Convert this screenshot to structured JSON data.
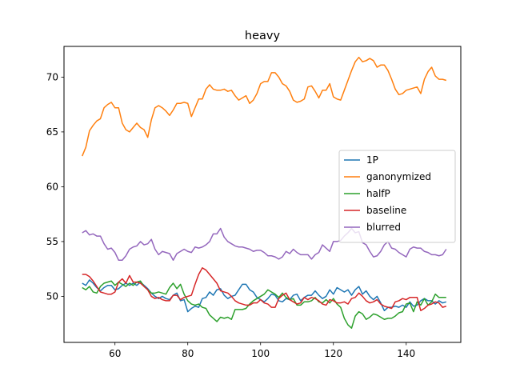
{
  "chart_data": {
    "type": "line",
    "title": "heavy",
    "xlabel": "",
    "ylabel": "",
    "xlim": [
      46,
      155
    ],
    "ylim": [
      45.8,
      72.8
    ],
    "xticks": [
      60,
      80,
      100,
      120,
      140
    ],
    "yticks": [
      50,
      55,
      60,
      65,
      70
    ],
    "legend_position": "center-right",
    "grid": false,
    "series": [
      {
        "name": "1P",
        "color": "#1f77b4",
        "x_start": 51,
        "x_step": 1,
        "values": [
          51.2,
          51.0,
          51.5,
          51.2,
          50.8,
          50.5,
          50.8,
          51.0,
          51.0,
          50.6,
          50.7,
          51.0,
          51.2,
          51.0,
          51.2,
          51.0,
          51.3,
          51.0,
          50.7,
          50.3,
          50.0,
          49.8,
          50.0,
          49.8,
          49.7,
          50.1,
          50.3,
          49.6,
          49.7,
          48.6,
          48.9,
          49.1,
          49.0,
          49.8,
          49.9,
          50.4,
          50.1,
          50.6,
          50.7,
          50.1,
          49.8,
          50.0,
          50.1,
          50.6,
          51.1,
          51.1,
          50.6,
          50.4,
          49.9,
          49.7,
          49.5,
          49.8,
          50.2,
          50.1,
          49.6,
          49.5,
          49.8,
          49.7,
          50.1,
          50.2,
          49.6,
          49.9,
          50.1,
          50.1,
          50.5,
          50.1,
          49.8,
          50.0,
          50.6,
          50.2,
          50.8,
          50.6,
          50.4,
          50.6,
          50.1,
          50.6,
          50.9,
          50.2,
          50.5,
          50.0,
          49.7,
          50.0,
          49.4,
          48.7,
          49.0,
          49.0,
          49.1,
          49.0,
          49.2,
          49.0,
          49.5,
          49.1,
          49.2,
          49.6,
          49.8,
          49.6,
          49.6,
          49.3,
          49.6,
          49.4,
          49.5
        ]
      },
      {
        "name": "ganonymized",
        "color": "#ff7f0e",
        "x_start": 51,
        "x_step": 1,
        "values": [
          62.8,
          63.6,
          65.1,
          65.6,
          66.0,
          66.2,
          67.2,
          67.5,
          67.7,
          67.2,
          67.2,
          65.8,
          65.2,
          65.0,
          65.4,
          65.8,
          65.4,
          65.2,
          64.5,
          66.1,
          67.2,
          67.4,
          67.2,
          66.9,
          66.5,
          67.0,
          67.6,
          67.6,
          67.7,
          67.6,
          66.4,
          67.2,
          68.0,
          68.0,
          68.9,
          69.3,
          68.9,
          68.8,
          68.8,
          68.9,
          68.7,
          68.8,
          68.3,
          67.9,
          68.1,
          68.3,
          67.6,
          67.9,
          68.5,
          69.4,
          69.6,
          69.6,
          70.4,
          70.4,
          70.0,
          69.4,
          69.2,
          68.7,
          67.9,
          67.7,
          67.8,
          68.0,
          69.1,
          69.2,
          68.7,
          68.1,
          68.8,
          68.8,
          69.4,
          68.2,
          68.0,
          67.9,
          68.8,
          69.7,
          70.6,
          71.4,
          71.8,
          71.4,
          71.5,
          71.7,
          71.5,
          70.9,
          71.1,
          71.1,
          70.6,
          69.8,
          68.9,
          68.4,
          68.5,
          68.8,
          68.9,
          69.0,
          69.1,
          68.5,
          69.8,
          70.5,
          70.9,
          70.1,
          69.8,
          69.8,
          69.7
        ]
      },
      {
        "name": "halfP",
        "color": "#2ca02c",
        "x_start": 51,
        "x_step": 1,
        "values": [
          50.8,
          50.6,
          50.9,
          50.4,
          50.3,
          50.9,
          51.2,
          51.3,
          51.4,
          51.0,
          51.3,
          51.1,
          50.9,
          51.2,
          51.0,
          51.3,
          51.4,
          50.9,
          50.6,
          50.3,
          50.3,
          50.4,
          50.3,
          50.2,
          50.8,
          51.2,
          50.7,
          51.1,
          50.2,
          49.6,
          49.3,
          49.2,
          49.3,
          49.0,
          48.9,
          48.3,
          48.0,
          47.7,
          48.1,
          48.0,
          48.1,
          47.9,
          48.8,
          48.8,
          48.8,
          48.9,
          49.3,
          49.6,
          49.8,
          50.0,
          50.2,
          50.6,
          50.4,
          50.2,
          49.9,
          50.3,
          49.9,
          49.7,
          49.8,
          49.2,
          49.2,
          49.5,
          49.5,
          49.6,
          49.9,
          49.5,
          49.4,
          49.7,
          49.4,
          49.8,
          49.3,
          49.0,
          48.0,
          47.4,
          47.1,
          48.2,
          48.6,
          48.4,
          47.9,
          48.1,
          48.4,
          48.3,
          48.1,
          47.9,
          48.0,
          48.0,
          48.2,
          48.5,
          48.6,
          49.3,
          49.4,
          48.6,
          49.5,
          49.2,
          49.8,
          49.2,
          49.5,
          50.2,
          49.9,
          49.9,
          49.9
        ]
      },
      {
        "name": "baseline",
        "color": "#d62728",
        "x_start": 51,
        "x_step": 1,
        "values": [
          52.0,
          52.0,
          51.8,
          51.4,
          50.9,
          50.4,
          50.3,
          50.2,
          50.2,
          50.4,
          51.3,
          51.6,
          51.2,
          51.9,
          51.3,
          51.3,
          51.2,
          50.9,
          50.6,
          50.0,
          49.8,
          49.9,
          49.7,
          49.6,
          49.6,
          50.1,
          50.1,
          49.7,
          49.9,
          50.0,
          50.1,
          51.1,
          52.0,
          52.6,
          52.4,
          52.0,
          51.6,
          51.2,
          50.5,
          50.4,
          50.3,
          50.0,
          49.6,
          49.4,
          49.3,
          49.2,
          49.2,
          49.4,
          49.4,
          49.7,
          49.4,
          49.3,
          49.0,
          49.0,
          49.8,
          50.1,
          50.3,
          49.7,
          49.5,
          49.3,
          49.4,
          49.9,
          49.7,
          49.9,
          49.8,
          49.6,
          49.3,
          49.2,
          49.7,
          49.6,
          49.4,
          49.4,
          49.5,
          49.3,
          49.8,
          49.9,
          50.3,
          50.0,
          49.6,
          49.4,
          49.5,
          49.7,
          49.3,
          49.1,
          49.0,
          48.9,
          49.5,
          49.6,
          49.8,
          49.7,
          49.9,
          49.9,
          49.9,
          48.7,
          48.9,
          49.2,
          49.3,
          49.5,
          49.4,
          49.0,
          49.1
        ]
      },
      {
        "name": "blurred",
        "color": "#9467bd",
        "x_start": 51,
        "x_step": 1,
        "values": [
          55.8,
          56.0,
          55.6,
          55.7,
          55.5,
          55.5,
          54.8,
          54.3,
          54.4,
          54.0,
          53.3,
          53.3,
          53.7,
          54.3,
          54.5,
          54.6,
          55.0,
          54.7,
          54.8,
          55.2,
          54.3,
          53.8,
          54.1,
          54.0,
          53.9,
          53.3,
          53.9,
          54.1,
          54.3,
          54.1,
          54.0,
          54.5,
          54.4,
          54.5,
          54.7,
          55.0,
          55.7,
          55.7,
          56.2,
          55.4,
          55.0,
          54.8,
          54.6,
          54.5,
          54.5,
          54.4,
          54.3,
          54.1,
          54.2,
          54.2,
          54.0,
          53.7,
          53.7,
          53.6,
          53.4,
          53.6,
          54.1,
          53.9,
          54.3,
          54.0,
          53.8,
          53.8,
          53.8,
          53.4,
          53.8,
          54.0,
          54.7,
          54.4,
          54.1,
          55.0,
          55.0,
          55.1,
          55.5,
          55.8,
          56.2,
          55.8,
          55.9,
          54.9,
          54.7,
          54.1,
          53.6,
          53.7,
          54.1,
          54.7,
          55.0,
          54.4,
          54.3,
          54.0,
          53.8,
          53.6,
          54.3,
          54.5,
          54.4,
          54.4,
          54.1,
          54.0,
          53.8,
          53.8,
          53.7,
          53.8,
          54.3
        ]
      }
    ]
  }
}
